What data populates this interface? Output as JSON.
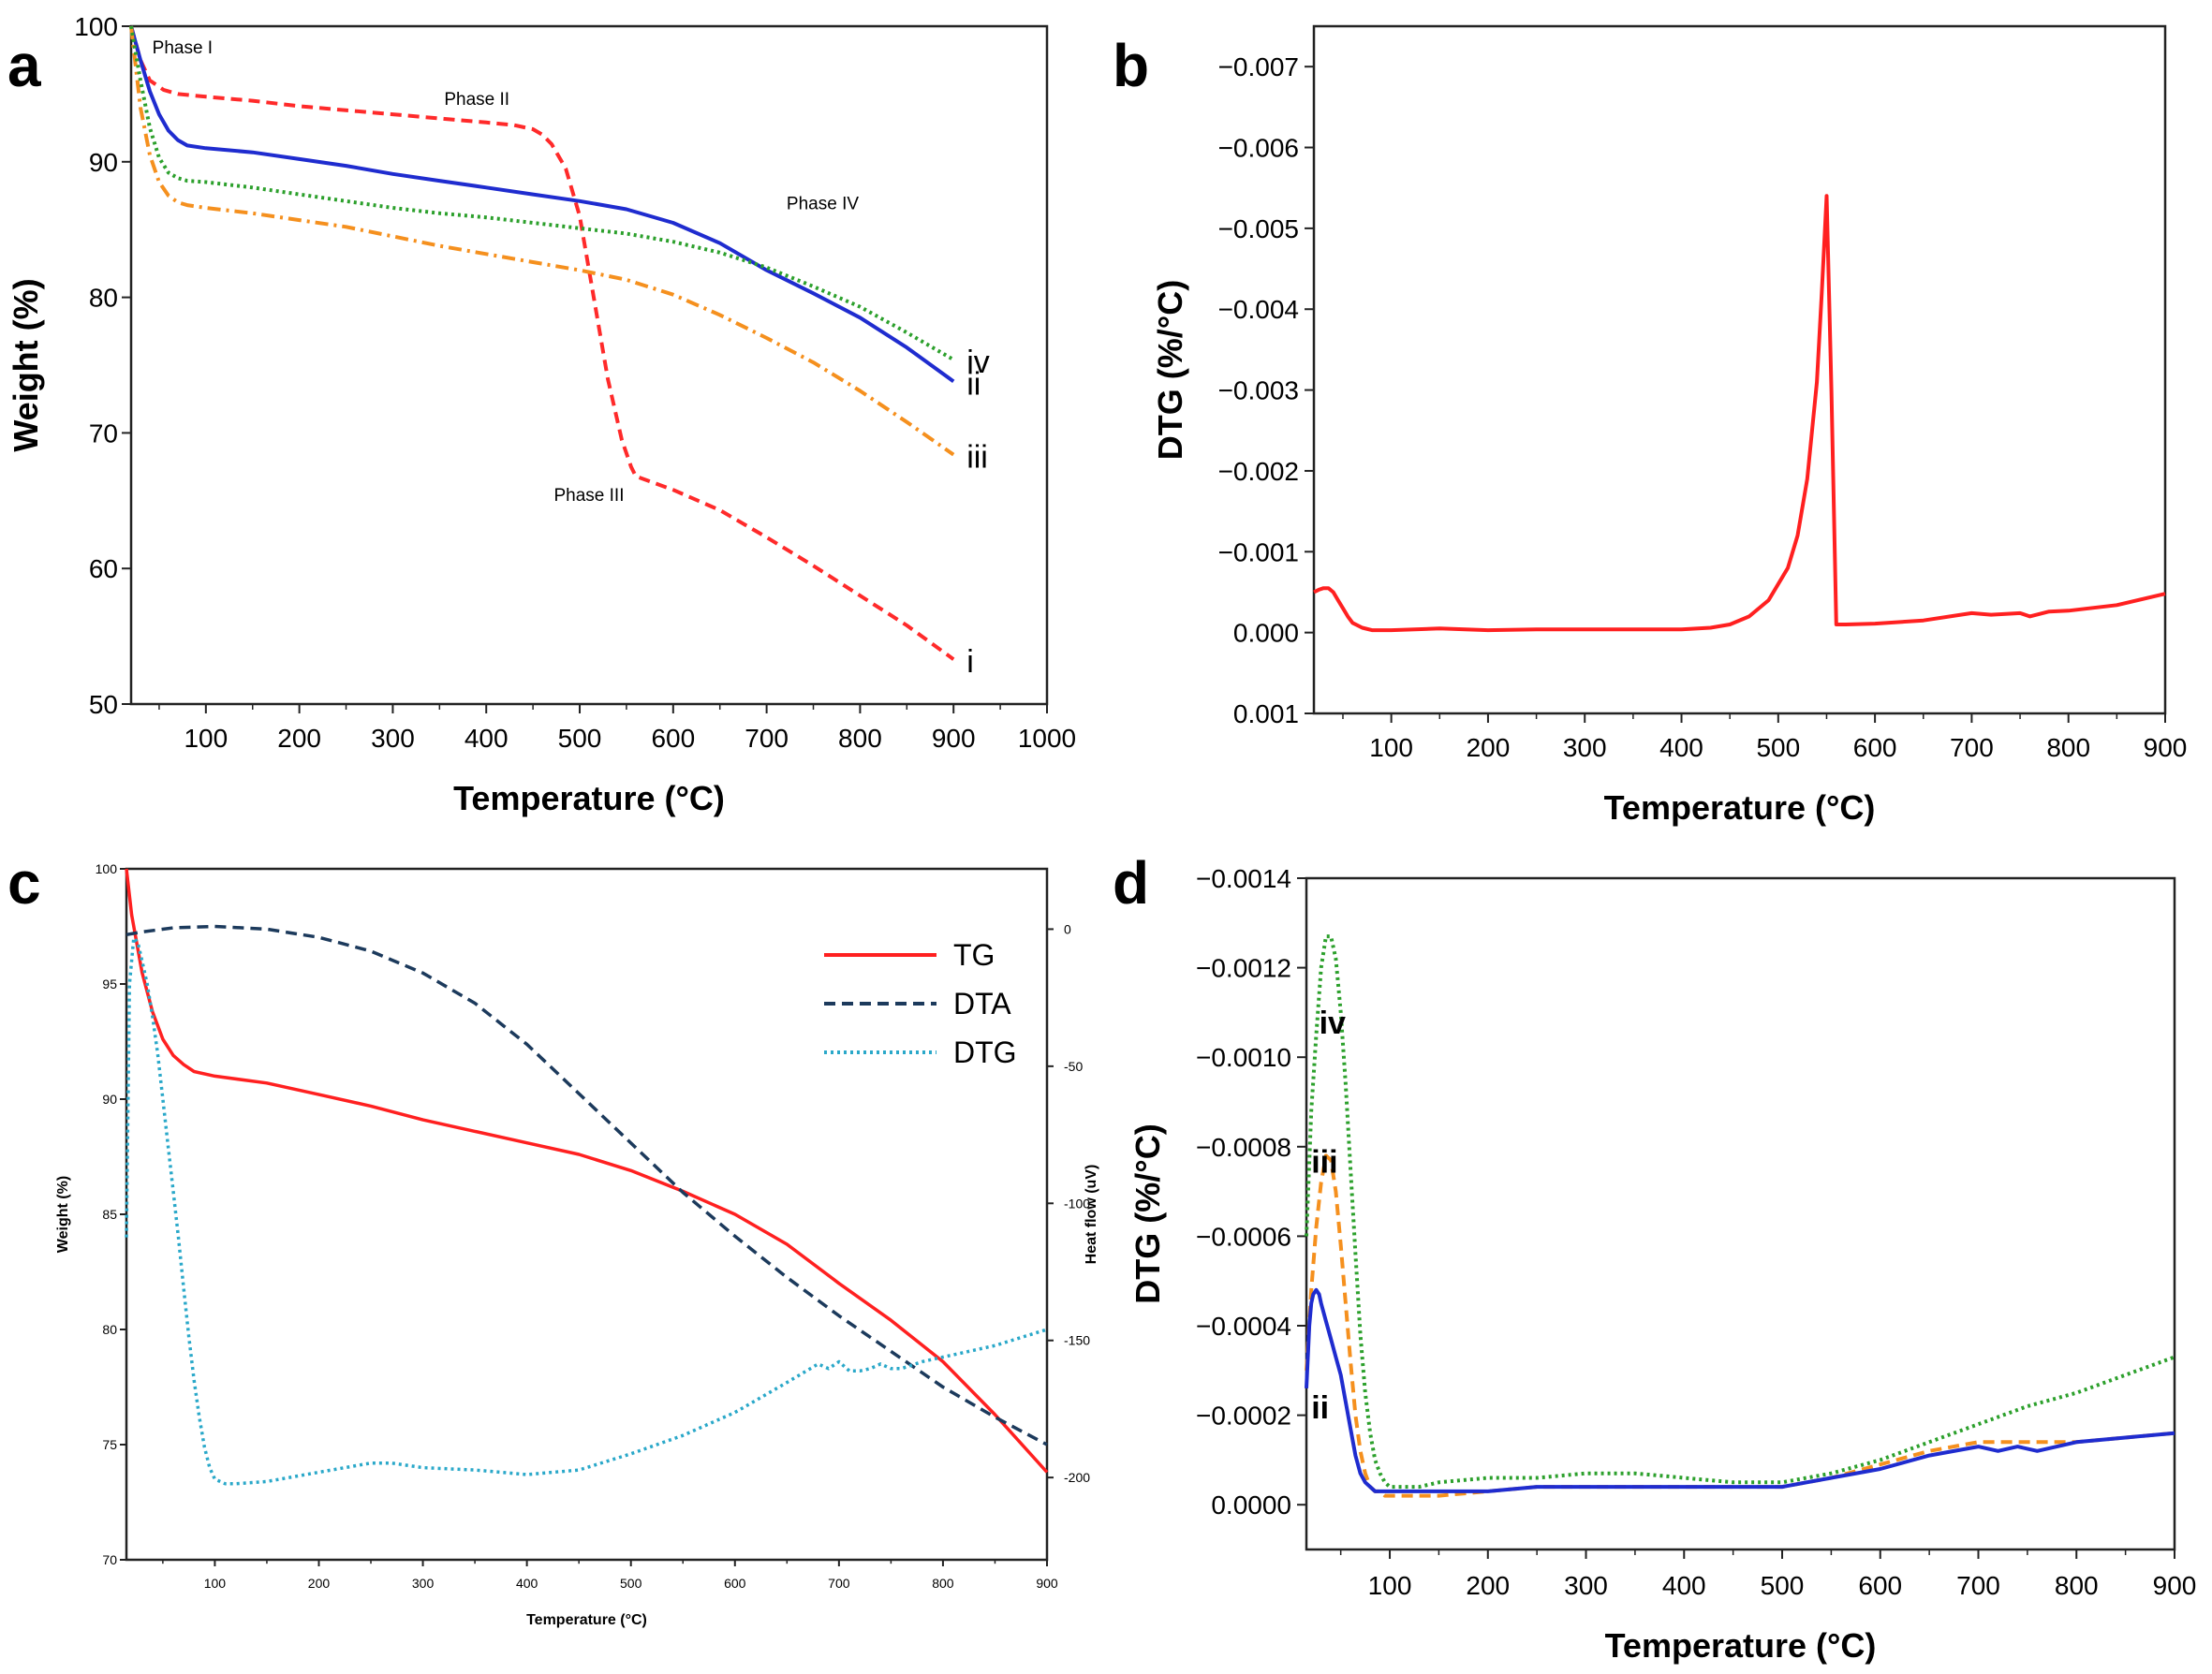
{
  "chart_data": [
    {
      "panel": "a",
      "type": "line",
      "title": "",
      "xlabel": "Temperature (°C)",
      "ylabel": "Weight (%)",
      "xlim": [
        20,
        1000
      ],
      "ylim": [
        50,
        100
      ],
      "xticks": [
        100,
        200,
        300,
        400,
        500,
        600,
        700,
        800,
        900,
        1000
      ],
      "yticks": [
        50,
        60,
        70,
        80,
        90,
        100
      ],
      "annotations": [
        {
          "text": "Phase I",
          "x": 75,
          "y": 98
        },
        {
          "text": "Phase II",
          "x": 390,
          "y": 94.2
        },
        {
          "text": "Phase III",
          "x": 510,
          "y": 65
        },
        {
          "text": "Phase IV",
          "x": 760,
          "y": 86.5
        }
      ],
      "series": [
        {
          "name": "i",
          "color": "#ff2a2a",
          "dash": "dashed",
          "x": [
            20,
            30,
            40,
            55,
            70,
            100,
            150,
            200,
            250,
            300,
            350,
            400,
            430,
            450,
            460,
            470,
            485,
            500,
            515,
            530,
            545,
            555,
            560,
            600,
            650,
            700,
            750,
            800,
            850,
            900
          ],
          "y": [
            100,
            97.5,
            96,
            95.3,
            95,
            94.8,
            94.5,
            94.1,
            93.8,
            93.5,
            93.2,
            92.9,
            92.7,
            92.4,
            92,
            91.3,
            89.5,
            86,
            80,
            74,
            69.5,
            67.5,
            66.8,
            65.8,
            64.3,
            62.3,
            60.2,
            58,
            55.8,
            53.3
          ],
          "label_text": "i"
        },
        {
          "name": "ii",
          "color": "#1f2ccf",
          "dash": "solid",
          "x": [
            20,
            30,
            40,
            50,
            60,
            70,
            80,
            100,
            150,
            200,
            250,
            300,
            350,
            400,
            450,
            500,
            550,
            600,
            650,
            700,
            750,
            800,
            850,
            900
          ],
          "y": [
            100,
            97.5,
            95.2,
            93.5,
            92.3,
            91.6,
            91.2,
            91,
            90.7,
            90.2,
            89.7,
            89.1,
            88.6,
            88.1,
            87.6,
            87.1,
            86.5,
            85.5,
            84,
            82,
            80.3,
            78.5,
            76.3,
            73.8
          ],
          "label_text": "ii"
        },
        {
          "name": "iii",
          "color": "#f5901e",
          "dash": "dashdot",
          "x": [
            20,
            30,
            40,
            50,
            60,
            70,
            80,
            100,
            150,
            200,
            250,
            300,
            350,
            400,
            450,
            500,
            550,
            600,
            650,
            700,
            750,
            800,
            850,
            900
          ],
          "y": [
            100,
            94,
            90.5,
            88.5,
            87.5,
            87,
            86.8,
            86.6,
            86.2,
            85.7,
            85.2,
            84.5,
            83.8,
            83.2,
            82.6,
            82,
            81.3,
            80.2,
            78.7,
            77,
            75.2,
            73.1,
            70.8,
            68.4
          ],
          "label_text": "iii"
        },
        {
          "name": "iv",
          "color": "#2ca02c",
          "dash": "dotted",
          "x": [
            20,
            30,
            40,
            50,
            60,
            70,
            80,
            100,
            150,
            200,
            250,
            300,
            350,
            400,
            450,
            500,
            550,
            600,
            650,
            700,
            750,
            800,
            850,
            900
          ],
          "y": [
            100,
            96,
            92.5,
            90.3,
            89.2,
            88.8,
            88.6,
            88.5,
            88.1,
            87.6,
            87.1,
            86.6,
            86.2,
            85.9,
            85.5,
            85.1,
            84.7,
            84.1,
            83.3,
            82.2,
            80.8,
            79.3,
            77.4,
            75.4
          ],
          "label_text": "iv"
        }
      ]
    },
    {
      "panel": "b",
      "type": "line",
      "title": "",
      "xlabel": "Temperature (°C)",
      "ylabel": "DTG (%/°C)",
      "xlim": [
        20,
        900
      ],
      "ylim": [
        0.001,
        -0.0075
      ],
      "y_inverted": true,
      "xticks": [
        100,
        200,
        300,
        400,
        500,
        600,
        700,
        800,
        900
      ],
      "yticks": [
        0.001,
        0.0,
        -0.001,
        -0.002,
        -0.003,
        -0.004,
        -0.005,
        -0.006,
        -0.007
      ],
      "ytick_labels": [
        "0.001",
        "0.000",
        "−0.001",
        "−0.002",
        "−0.003",
        "−0.004",
        "−0.005",
        "−0.006",
        "−0.007"
      ],
      "series": [
        {
          "name": "DTG",
          "color": "#ff2020",
          "dash": "solid",
          "x": [
            20,
            25,
            30,
            35,
            40,
            45,
            50,
            55,
            60,
            70,
            80,
            100,
            150,
            200,
            250,
            300,
            350,
            400,
            430,
            450,
            470,
            490,
            510,
            520,
            530,
            540,
            545,
            550,
            555,
            560,
            565,
            570,
            600,
            650,
            700,
            720,
            750,
            760,
            780,
            800,
            850,
            900
          ],
          "y": [
            -0.0005,
            -0.00053,
            -0.00055,
            -0.00055,
            -0.0005,
            -0.0004,
            -0.0003,
            -0.0002,
            -0.00012,
            -6e-05,
            -3e-05,
            -3e-05,
            -5e-05,
            -3e-05,
            -4e-05,
            -4e-05,
            -4e-05,
            -4e-05,
            -6e-05,
            -0.0001,
            -0.0002,
            -0.0004,
            -0.0008,
            -0.0012,
            -0.0019,
            -0.0031,
            -0.0042,
            -0.0054,
            -0.003,
            -0.0001,
            -0.0001,
            -0.0001,
            -0.00011,
            -0.00015,
            -0.00024,
            -0.00022,
            -0.00024,
            -0.0002,
            -0.00026,
            -0.00027,
            -0.00034,
            -0.00048
          ]
        }
      ]
    },
    {
      "panel": "c",
      "type": "line",
      "title": "",
      "xlabel": "Temperature (°C)",
      "ylabel": "Weight (%)",
      "y2label": "Heat flow (uV)",
      "xlim": [
        15,
        900
      ],
      "ylim": [
        70,
        100
      ],
      "y2lim": [
        -230,
        22
      ],
      "xticks": [
        100,
        200,
        300,
        400,
        500,
        600,
        700,
        800,
        900
      ],
      "yticks": [
        70,
        75,
        80,
        85,
        90,
        95,
        100
      ],
      "y2ticks": [
        0,
        -50,
        -100,
        -150,
        -200
      ],
      "legend": {
        "position": "top-right",
        "entries": [
          "TG",
          "DTA",
          "DTG"
        ]
      },
      "series": [
        {
          "name": "TG",
          "axis": "y",
          "color": "#ff2020",
          "dash": "solid",
          "x": [
            15,
            20,
            30,
            40,
            50,
            60,
            70,
            80,
            100,
            150,
            200,
            250,
            300,
            350,
            400,
            450,
            500,
            550,
            600,
            650,
            700,
            750,
            800,
            850,
            900
          ],
          "y": [
            100,
            98,
            95.5,
            93.8,
            92.6,
            91.9,
            91.5,
            91.2,
            91,
            90.7,
            90.2,
            89.7,
            89.1,
            88.6,
            88.1,
            87.6,
            86.9,
            86,
            85,
            83.7,
            82,
            80.4,
            78.6,
            76.3,
            73.8
          ]
        },
        {
          "name": "DTA",
          "axis": "y2",
          "color": "#1c3a5c",
          "dash": "dashed",
          "x": [
            15,
            30,
            60,
            100,
            150,
            200,
            250,
            300,
            350,
            400,
            450,
            500,
            550,
            600,
            650,
            700,
            750,
            800,
            850,
            900
          ],
          "y": [
            -2,
            -1,
            0.5,
            1,
            0,
            -3,
            -8,
            -16,
            -27,
            -42,
            -60,
            -78,
            -96,
            -112,
            -127,
            -141,
            -154,
            -167,
            -178,
            -188
          ]
        },
        {
          "name": "DTG",
          "axis": "y",
          "color": "#2aa8c9",
          "dash": "dotted",
          "x": [
            15,
            18,
            22,
            26,
            30,
            35,
            40,
            45,
            50,
            55,
            60,
            65,
            70,
            75,
            80,
            85,
            90,
            95,
            100,
            110,
            120,
            150,
            200,
            250,
            270,
            300,
            350,
            400,
            450,
            500,
            550,
            600,
            650,
            680,
            690,
            700,
            710,
            720,
            730,
            740,
            750,
            760,
            780,
            800,
            850,
            900
          ],
          "y": [
            84,
            95,
            97,
            96.8,
            96,
            95,
            93.6,
            92,
            90,
            88,
            86,
            84,
            81.8,
            79.7,
            77.8,
            76.2,
            74.9,
            74,
            73.5,
            73.3,
            73.3,
            73.4,
            73.8,
            74.2,
            74.2,
            74,
            73.9,
            73.7,
            73.9,
            74.6,
            75.4,
            76.4,
            77.7,
            78.5,
            78.3,
            78.6,
            78.2,
            78.2,
            78.3,
            78.5,
            78.3,
            78.3,
            78.6,
            78.8,
            79.3,
            80
          ]
        }
      ]
    },
    {
      "panel": "d",
      "type": "line",
      "title": "",
      "xlabel": "Temperature (°C)",
      "ylabel": "DTG (%/°C)",
      "xlim": [
        15,
        900
      ],
      "ylim": [
        0.0001,
        -0.0014
      ],
      "y_inverted": true,
      "xticks": [
        100,
        200,
        300,
        400,
        500,
        600,
        700,
        800,
        900
      ],
      "yticks": [
        0.0,
        -0.0002,
        -0.0004,
        -0.0006,
        -0.0008,
        -0.001,
        -0.0012,
        -0.0014
      ],
      "ytick_labels": [
        "0.0000",
        "−0.0002",
        "−0.0004",
        "−0.0006",
        "−0.0008",
        "−0.0010",
        "−0.0012",
        "−0.0014"
      ],
      "series": [
        {
          "name": "iv",
          "color": "#2ca02c",
          "dash": "dotted",
          "x": [
            15,
            20,
            25,
            30,
            35,
            40,
            45,
            50,
            55,
            60,
            65,
            70,
            75,
            80,
            85,
            90,
            95,
            100,
            110,
            120,
            130,
            150,
            200,
            250,
            300,
            350,
            400,
            450,
            500,
            550,
            600,
            650,
            700,
            750,
            800,
            850,
            900
          ],
          "y": [
            -0.0006,
            -0.00088,
            -0.00105,
            -0.0012,
            -0.00127,
            -0.00127,
            -0.00122,
            -0.0011,
            -0.00094,
            -0.00075,
            -0.00056,
            -0.00038,
            -0.00025,
            -0.00016,
            -0.0001,
            -7e-05,
            -5e-05,
            -4e-05,
            -4e-05,
            -4e-05,
            -4e-05,
            -5e-05,
            -6e-05,
            -6e-05,
            -7e-05,
            -7e-05,
            -6e-05,
            -5e-05,
            -5e-05,
            -7e-05,
            -0.0001,
            -0.00014,
            -0.00018,
            -0.00022,
            -0.00025,
            -0.00029,
            -0.00033
          ],
          "label_text": "iv"
        },
        {
          "name": "iii",
          "color": "#f5901e",
          "dash": "dashed",
          "x": [
            15,
            20,
            25,
            30,
            35,
            40,
            45,
            50,
            55,
            60,
            65,
            70,
            75,
            80,
            85,
            90,
            95,
            100,
            120,
            150,
            200,
            250,
            300,
            350,
            400,
            450,
            500,
            550,
            600,
            650,
            700,
            750,
            800,
            850,
            900
          ],
          "y": [
            -0.0003,
            -0.00048,
            -0.00062,
            -0.00072,
            -0.00078,
            -0.00077,
            -0.0007,
            -0.00058,
            -0.00045,
            -0.00032,
            -0.0002,
            -0.00012,
            -7e-05,
            -4e-05,
            -3e-05,
            -3e-05,
            -2e-05,
            -2e-05,
            -2e-05,
            -2e-05,
            -3e-05,
            -4e-05,
            -4e-05,
            -4e-05,
            -4e-05,
            -4e-05,
            -4e-05,
            -6e-05,
            -9e-05,
            -0.00012,
            -0.00014,
            -0.00014,
            -0.00014,
            -0.00015,
            -0.00016
          ],
          "label_text": "iii"
        },
        {
          "name": "ii",
          "color": "#1f2ccf",
          "dash": "solid",
          "x": [
            15,
            18,
            20,
            22,
            25,
            28,
            30,
            35,
            40,
            45,
            50,
            55,
            60,
            65,
            70,
            75,
            80,
            85,
            90,
            95,
            100,
            120,
            150,
            200,
            250,
            300,
            350,
            400,
            450,
            500,
            550,
            600,
            650,
            700,
            720,
            740,
            760,
            800,
            850,
            900
          ],
          "y": [
            -0.00026,
            -0.0004,
            -0.00045,
            -0.00047,
            -0.00048,
            -0.00047,
            -0.00045,
            -0.00041,
            -0.00037,
            -0.00033,
            -0.00029,
            -0.00023,
            -0.00017,
            -0.00011,
            -7e-05,
            -5e-05,
            -4e-05,
            -3e-05,
            -3e-05,
            -3e-05,
            -3e-05,
            -3e-05,
            -3e-05,
            -3e-05,
            -4e-05,
            -4e-05,
            -4e-05,
            -4e-05,
            -4e-05,
            -4e-05,
            -6e-05,
            -8e-05,
            -0.00011,
            -0.00013,
            -0.00012,
            -0.00013,
            -0.00012,
            -0.00014,
            -0.00015,
            -0.00016
          ],
          "label_text": "ii"
        }
      ]
    }
  ]
}
